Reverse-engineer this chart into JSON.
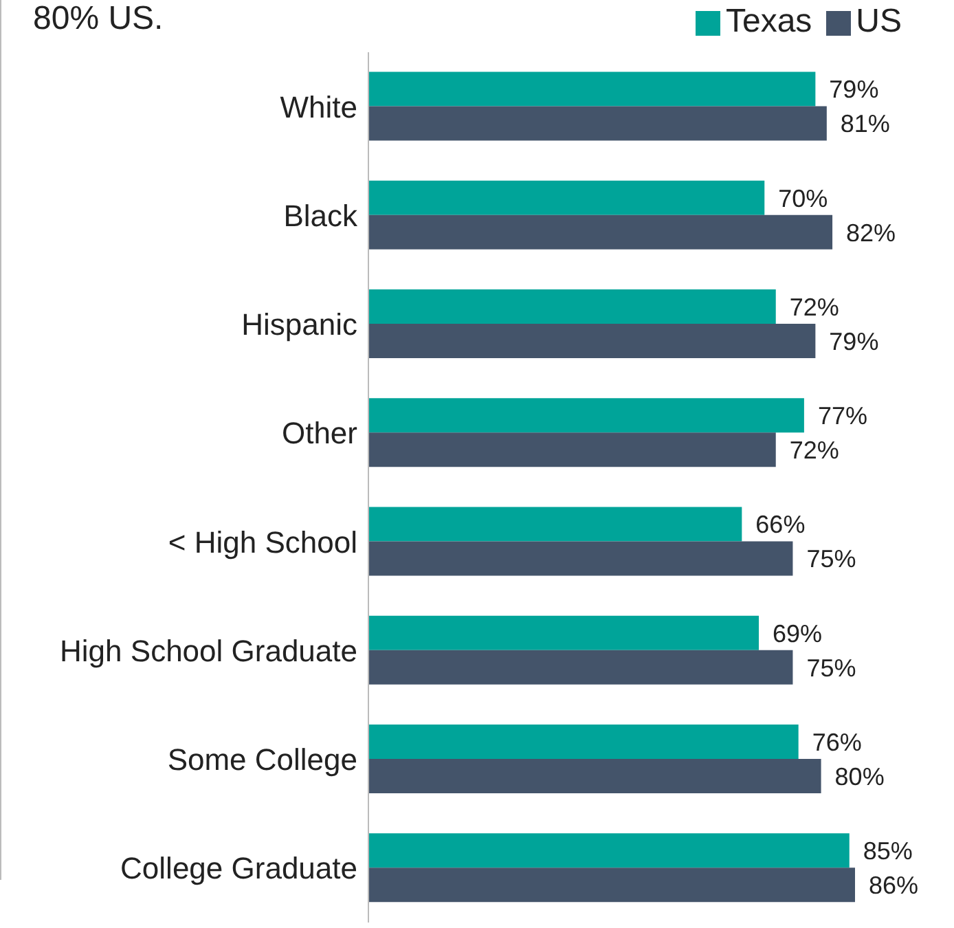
{
  "chart_data": {
    "type": "bar",
    "orientation": "horizontal",
    "title": "80% US.",
    "categories": [
      "White",
      "Black",
      "Hispanic",
      "Other",
      "< High School",
      "High School Graduate",
      "Some College",
      "College Graduate"
    ],
    "series": [
      {
        "name": "Texas",
        "color": "#00a499",
        "values": [
          79,
          70,
          72,
          77,
          66,
          69,
          76,
          85
        ],
        "value_labels": [
          "79%",
          "70%",
          "72%",
          "77%",
          "66%",
          "69%",
          "76%",
          "85%"
        ]
      },
      {
        "name": "US",
        "color": "#44546a",
        "values": [
          81,
          82,
          79,
          72,
          75,
          75,
          80,
          86
        ],
        "value_labels": [
          "81%",
          "82%",
          "79%",
          "72%",
          "75%",
          "75%",
          "80%",
          "86%"
        ]
      }
    ],
    "legend": "top"
  }
}
